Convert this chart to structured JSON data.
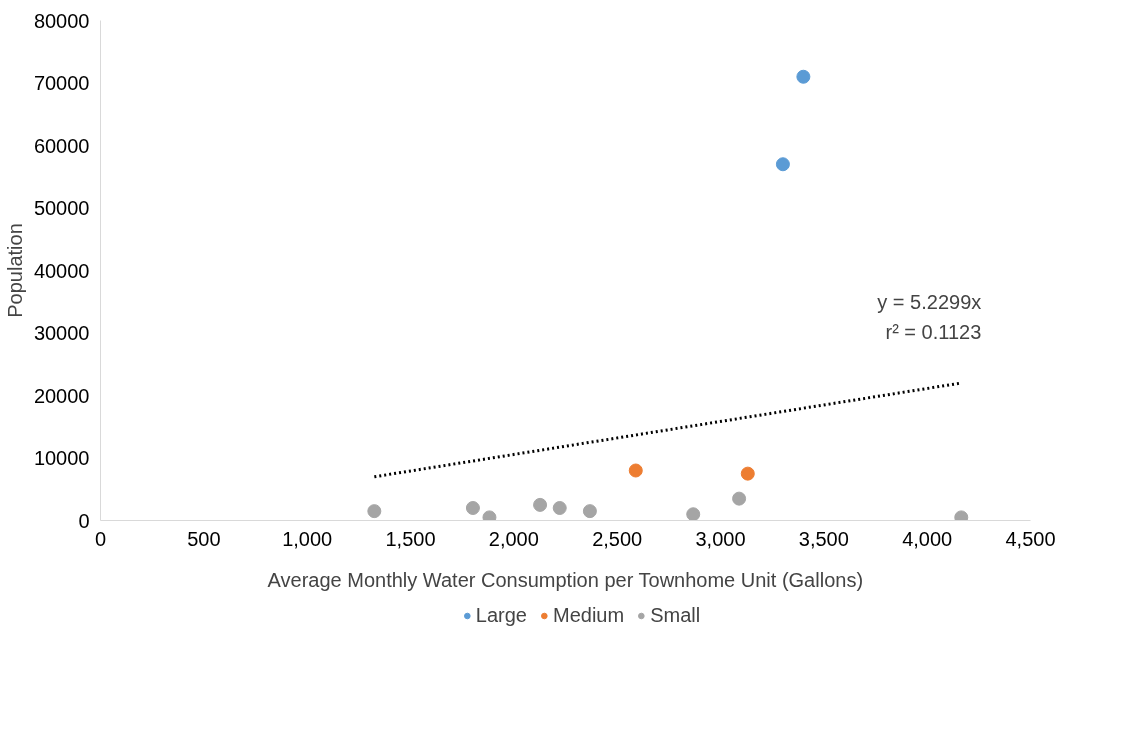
{
  "chart_data": {
    "type": "scatter",
    "xlabel": "Average Monthly Water Consumption per Townhome Unit (Gallons)",
    "ylabel": "Population",
    "series": [
      {
        "name": "Large",
        "color": "#5b9bd5",
        "x": [
          3401,
          3302
        ],
        "values": [
          71000,
          57000
        ]
      },
      {
        "name": "Medium",
        "color": "#ed7d31",
        "x": [
          2590,
          3132
        ],
        "values": [
          8000,
          7500
        ]
      },
      {
        "name": "Small",
        "color": "#a5a5a5",
        "x": [
          1325,
          1802,
          1882,
          2127,
          2222,
          2368,
          2868,
          3090,
          4165
        ],
        "values": [
          1500,
          2000,
          500,
          2500,
          2000,
          1500,
          1000,
          3500,
          500
        ]
      },
      {
        "type": "line",
        "marker": "none",
        "line_style": "dotted",
        "color": "#000000",
        "x": [
          1325,
          4165
        ],
        "values": [
          7000,
          22000
        ]
      }
    ],
    "annotations": [
      "y = 5.2299x",
      "r² = 0.1123"
    ],
    "xlim": [
      0,
      4500
    ],
    "ylim": [
      0,
      80000
    ],
    "xticks": [
      0,
      500,
      {
        "value": 1000,
        "label": "1,000"
      },
      {
        "value": 1500,
        "label": "1,500"
      },
      {
        "value": 2000,
        "label": "2,000"
      },
      {
        "value": 2500,
        "label": "2,500"
      },
      {
        "value": 3000,
        "label": "3,000"
      },
      {
        "value": 3500,
        "label": "3,500"
      },
      {
        "value": 4000,
        "label": "4,000"
      },
      {
        "value": 4500,
        "label": "4,500"
      }
    ],
    "yticks": [
      0,
      10000,
      20000,
      30000,
      40000,
      50000,
      60000,
      70000,
      80000
    ],
    "marker": "circle",
    "grid": false,
    "legend": "bottom"
  }
}
